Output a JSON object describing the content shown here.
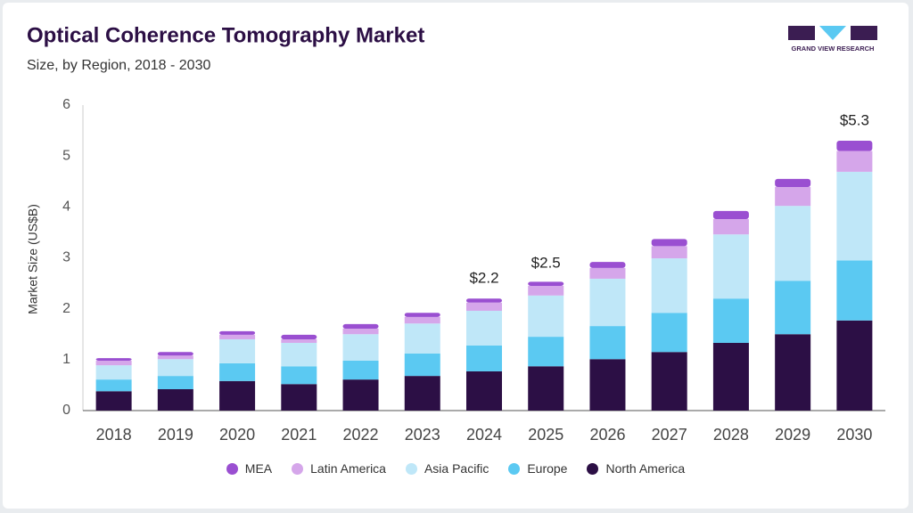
{
  "chart_data": {
    "type": "stacked_bar",
    "title": "Optical Coherence Tomography Market",
    "subtitle": "Size, by Region, 2018 - 2030",
    "y_label": "Market Size (US$B)",
    "logo_text": "GRAND VIEW RESEARCH",
    "categories": [
      "2018",
      "2019",
      "2020",
      "2021",
      "2022",
      "2023",
      "2024",
      "2025",
      "2026",
      "2027",
      "2028",
      "2029",
      "2030"
    ],
    "series": [
      {
        "name": "MEA",
        "color": "#9a4fd1",
        "values": [
          0.05,
          0.07,
          0.07,
          0.09,
          0.09,
          0.08,
          0.08,
          0.08,
          0.12,
          0.14,
          0.16,
          0.16,
          0.2
        ]
      },
      {
        "name": "Latin America",
        "color": "#d5a6ea",
        "values": [
          0.09,
          0.07,
          0.09,
          0.07,
          0.11,
          0.13,
          0.16,
          0.19,
          0.21,
          0.24,
          0.3,
          0.37,
          0.41
        ]
      },
      {
        "name": "Asia Pacific",
        "color": "#bfe7f8",
        "values": [
          0.28,
          0.33,
          0.47,
          0.46,
          0.52,
          0.59,
          0.68,
          0.81,
          0.93,
          1.07,
          1.26,
          1.47,
          1.74
        ]
      },
      {
        "name": "Europe",
        "color": "#5bc9f2",
        "values": [
          0.23,
          0.26,
          0.35,
          0.35,
          0.37,
          0.44,
          0.51,
          0.58,
          0.65,
          0.77,
          0.87,
          1.05,
          1.18
        ]
      },
      {
        "name": "North America",
        "color": "#2c0f45",
        "values": [
          0.38,
          0.42,
          0.58,
          0.52,
          0.61,
          0.68,
          0.77,
          0.87,
          1.01,
          1.15,
          1.33,
          1.5,
          1.77
        ]
      }
    ],
    "annotations": [
      {
        "category": "2024",
        "value": 2.2,
        "text": "$2.2"
      },
      {
        "category": "2025",
        "value": 2.5,
        "text": "$2.5"
      },
      {
        "category": "2030",
        "value": 5.3,
        "text": "$5.3"
      }
    ],
    "ylim": [
      0,
      6
    ],
    "yticks": [
      0,
      1,
      2,
      3,
      4,
      5,
      6
    ],
    "grid": false
  }
}
